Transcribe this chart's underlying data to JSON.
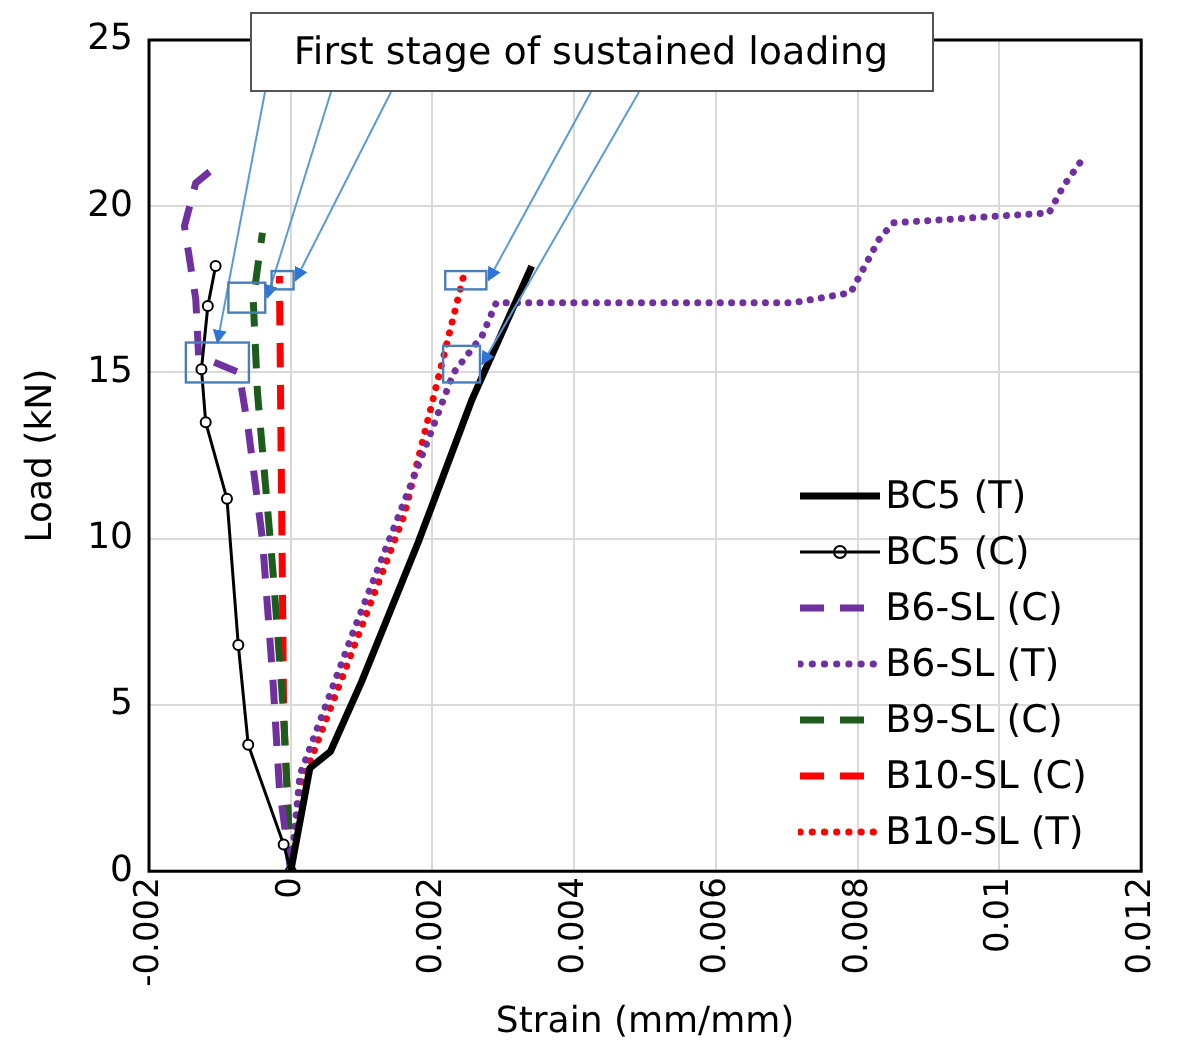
{
  "chart_data": {
    "type": "line",
    "xlabel": "Strain (mm/mm)",
    "ylabel": "Load (kN)",
    "xlim": [
      -0.002,
      0.012
    ],
    "xticks": [
      -0.002,
      0,
      0.002,
      0.004,
      0.006,
      0.008,
      0.01,
      0.012
    ],
    "ylim": [
      0,
      25
    ],
    "yticks": [
      0,
      5,
      10,
      15,
      20,
      25
    ],
    "grid": true,
    "legend": "bottom right",
    "marker": "none",
    "annotations": [
      {
        "text": "First stage of sustained loading",
        "x": 0.0027,
        "y": 15.25
      }
    ],
    "series": [
      {
        "name": "BC5 (T)",
        "color": "#000000",
        "line_style": "solid",
        "x": [
          0,
          0.00027,
          0.00056,
          0.001,
          0.0018,
          0.00256,
          0.0034
        ],
        "values": [
          0,
          3.1,
          3.6,
          5.7,
          9.9,
          14.2,
          18.2
        ]
      },
      {
        "name": "BC5 (C)",
        "color": "#000000",
        "line_style": "solid",
        "marker": "circle",
        "x": [
          0,
          -0.0001,
          -0.0006,
          -0.00074,
          -0.0009,
          -0.0012,
          -0.00126,
          -0.00117,
          -0.00106
        ],
        "values": [
          0,
          0.8,
          3.8,
          6.8,
          11.2,
          13.5,
          15.1,
          17,
          18.2
        ]
      },
      {
        "name": "B6-SL (C)",
        "color": "#7030a0",
        "line_style": "dashed",
        "x": [
          0,
          -0.00016,
          -0.00025,
          -0.0004,
          -0.0006,
          -0.00073,
          -0.0013,
          -0.00134,
          -0.0015,
          -0.00134,
          -0.00105
        ],
        "values": [
          0,
          2.5,
          5.7,
          10,
          13.3,
          15,
          15.5,
          17.2,
          19.4,
          20.7,
          21.2
        ]
      },
      {
        "name": "B6-SL (T)",
        "color": "#7030a0",
        "line_style": "dotted",
        "x": [
          0,
          0.00013,
          0.0009,
          0.0018,
          0.0023,
          0.0027,
          0.0029,
          0.0071,
          0.0079,
          0.0083,
          0.0085,
          0.0107,
          0.0109,
          0.0112
        ],
        "values": [
          0,
          2.9,
          7.3,
          12.2,
          15,
          16.1,
          17.1,
          17.1,
          17.4,
          19,
          19.5,
          19.8,
          20.6,
          21.5
        ]
      },
      {
        "name": "B9-SL (C)",
        "color": "#1e5c1e",
        "line_style": "dashed",
        "x": [
          0,
          -0.0001,
          -0.00025,
          -0.00047,
          -0.00053,
          -0.0004
        ],
        "values": [
          0,
          4.7,
          9,
          14.4,
          17.2,
          19.2
        ]
      },
      {
        "name": "B10-SL (C)",
        "color": "#ff0000",
        "line_style": "dashed",
        "x": [
          0,
          -0.0001,
          -0.00016
        ],
        "values": [
          0,
          4.7,
          17.9
        ]
      },
      {
        "name": "B10-SL (T)",
        "color": "#ff0000",
        "line_style": "dotted",
        "x": [
          0,
          0.00013,
          0.0016,
          0.00245
        ],
        "values": [
          0,
          2.5,
          10.7,
          18
        ]
      }
    ]
  }
}
